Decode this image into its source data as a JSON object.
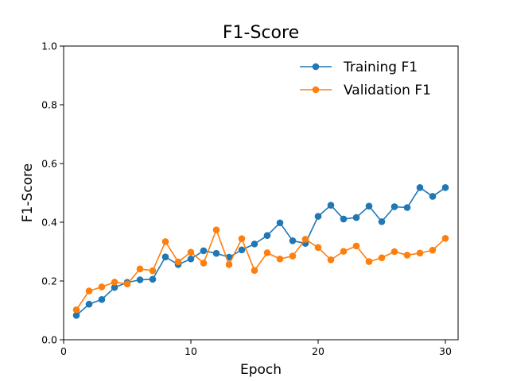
{
  "chart_data": {
    "type": "line",
    "title": "F1-Score",
    "xlabel": "Epoch",
    "ylabel": "F1-Score",
    "xlim": [
      0,
      31
    ],
    "ylim": [
      0.0,
      1.0
    ],
    "xticks": [
      0,
      10,
      20,
      30
    ],
    "xtick_labels": [
      "0",
      "10",
      "20",
      "30"
    ],
    "yticks": [
      0.0,
      0.2,
      0.4,
      0.6,
      0.8,
      1.0
    ],
    "ytick_labels": [
      "0.0",
      "0.2",
      "0.4",
      "0.6",
      "0.8",
      "1.0"
    ],
    "grid": false,
    "legend_position": "top-right",
    "x": [
      1,
      2,
      3,
      4,
      5,
      6,
      7,
      8,
      9,
      10,
      11,
      12,
      13,
      14,
      15,
      16,
      17,
      18,
      19,
      20,
      21,
      22,
      23,
      24,
      25,
      26,
      27,
      28,
      29,
      30
    ],
    "series": [
      {
        "name": "Training F1",
        "color": "#1f77b4",
        "values": [
          0.083,
          0.121,
          0.137,
          0.178,
          0.195,
          0.204,
          0.206,
          0.282,
          0.256,
          0.275,
          0.303,
          0.294,
          0.281,
          0.306,
          0.326,
          0.355,
          0.398,
          0.337,
          0.328,
          0.42,
          0.458,
          0.411,
          0.416,
          0.455,
          0.402,
          0.453,
          0.45,
          0.518,
          0.488,
          0.518
        ]
      },
      {
        "name": "Validation F1",
        "color": "#ff7f0e",
        "values": [
          0.102,
          0.166,
          0.18,
          0.196,
          0.19,
          0.241,
          0.235,
          0.334,
          0.265,
          0.298,
          0.261,
          0.374,
          0.256,
          0.344,
          0.236,
          0.296,
          0.275,
          0.285,
          0.342,
          0.314,
          0.272,
          0.301,
          0.319,
          0.266,
          0.279,
          0.3,
          0.288,
          0.295,
          0.305,
          0.345
        ]
      }
    ]
  }
}
